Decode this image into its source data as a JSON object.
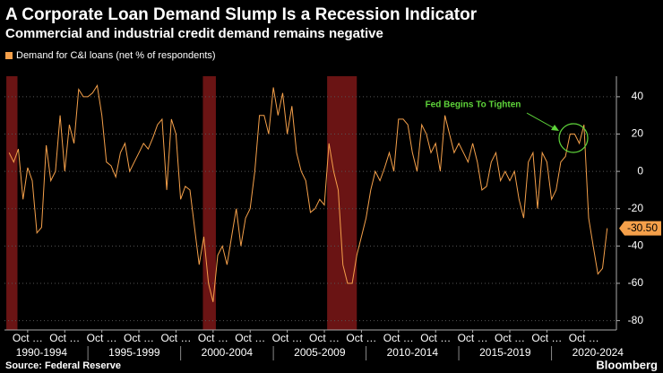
{
  "chart_data": {
    "type": "line",
    "title": "A Corporate Loan Demand Slump Is a Recession Indicator",
    "subtitle": "Commercial and industrial credit demand remains negative",
    "source": "Source: Federal Reserve",
    "brand": "Bloomberg",
    "annotation": "Fed Begins To Tighten",
    "end_label": "-30.50",
    "series": [
      {
        "name": "Demand for C&I loans (net % of respondents)",
        "color": "#f5a04a",
        "x": [
          1990.75,
          1991,
          1991.25,
          1991.5,
          1991.75,
          1992,
          1992.25,
          1992.5,
          1992.75,
          1993,
          1993.25,
          1993.5,
          1993.75,
          1994,
          1994.25,
          1994.5,
          1994.75,
          1995,
          1995.25,
          1995.5,
          1995.75,
          1996,
          1996.25,
          1996.5,
          1996.75,
          1997,
          1997.25,
          1997.5,
          1997.75,
          1998,
          1998.25,
          1998.5,
          1998.75,
          1999,
          1999.25,
          1999.5,
          1999.75,
          2000,
          2000.25,
          2000.5,
          2000.75,
          2001,
          2001.25,
          2001.5,
          2001.75,
          2002,
          2002.25,
          2002.5,
          2002.75,
          2003,
          2003.25,
          2003.5,
          2003.75,
          2004,
          2004.25,
          2004.5,
          2004.75,
          2005,
          2005.25,
          2005.5,
          2005.75,
          2006,
          2006.25,
          2006.5,
          2006.75,
          2007,
          2007.25,
          2007.5,
          2007.75,
          2008,
          2008.25,
          2008.5,
          2008.75,
          2009,
          2009.25,
          2009.5,
          2009.75,
          2010,
          2010.25,
          2010.5,
          2010.75,
          2011,
          2011.25,
          2011.5,
          2011.75,
          2012,
          2012.25,
          2012.5,
          2012.75,
          2013,
          2013.25,
          2013.5,
          2013.75,
          2014,
          2014.25,
          2014.5,
          2014.75,
          2015,
          2015.25,
          2015.5,
          2015.75,
          2016,
          2016.25,
          2016.5,
          2016.75,
          2017,
          2017.25,
          2017.5,
          2017.75,
          2018,
          2018.25,
          2018.5,
          2018.75,
          2019,
          2019.25,
          2019.5,
          2019.75,
          2020,
          2020.25,
          2020.5,
          2020.75,
          2021,
          2021.25,
          2021.5,
          2021.75,
          2022,
          2022.25,
          2022.5,
          2022.75,
          2023
        ],
        "values": [
          10,
          5,
          12,
          -15,
          2,
          -5,
          -33,
          -30,
          14,
          -5,
          0,
          30,
          0,
          25,
          15,
          44,
          40,
          40,
          42,
          46,
          30,
          5,
          3,
          -3,
          10,
          15,
          0,
          5,
          10,
          15,
          12,
          18,
          25,
          28,
          -10,
          28,
          20,
          -15,
          -8,
          -10,
          -30,
          -50,
          -35,
          -60,
          -70,
          -45,
          -40,
          -50,
          -35,
          -20,
          -40,
          -25,
          -20,
          0,
          30,
          30,
          20,
          45,
          30,
          42,
          20,
          35,
          10,
          0,
          -5,
          -22,
          -20,
          -15,
          -18,
          15,
          0,
          -10,
          -50,
          -60,
          -60,
          -45,
          -35,
          -25,
          -10,
          0,
          -5,
          2,
          10,
          0,
          28,
          28,
          25,
          10,
          0,
          25,
          20,
          10,
          15,
          0,
          30,
          20,
          10,
          15,
          10,
          5,
          15,
          5,
          -10,
          -8,
          5,
          10,
          -5,
          0,
          -5,
          0,
          -15,
          -25,
          5,
          10,
          -20,
          10,
          5,
          -15,
          -10,
          5,
          8,
          20,
          20,
          15,
          25,
          -25,
          -40,
          -55,
          -52,
          -30.5
        ]
      }
    ],
    "recessions": [
      [
        1990.6,
        1991.2
      ],
      [
        2001.2,
        2001.9
      ],
      [
        2007.9,
        2009.5
      ]
    ],
    "xlim": [
      1990.5,
      2023.5
    ],
    "xticks": [
      {
        "value": 1991.75,
        "label": "Oct …"
      },
      {
        "value": 1993.75,
        "label": "Oct …"
      },
      {
        "value": 1995.75,
        "label": "Oct …"
      },
      {
        "value": 1997.75,
        "label": "Oct …"
      },
      {
        "value": 1999.75,
        "label": "Oct …"
      },
      {
        "value": 2001.75,
        "label": "Oct …"
      },
      {
        "value": 2003.75,
        "label": "Oct …"
      },
      {
        "value": 2005.75,
        "label": "Oct …"
      },
      {
        "value": 2007.75,
        "label": "Oct …"
      },
      {
        "value": 2009.75,
        "label": "Oct …"
      },
      {
        "value": 2011.75,
        "label": "Oct …"
      },
      {
        "value": 2013.75,
        "label": "Oct …"
      },
      {
        "value": 2015.75,
        "label": "Oct …"
      },
      {
        "value": 2017.75,
        "label": "Oct …"
      },
      {
        "value": 2019.75,
        "label": "Oct …"
      },
      {
        "value": 2021.75,
        "label": "Oct …"
      }
    ],
    "period_labels": [
      {
        "value": 1992.5,
        "label": "1990-1994"
      },
      {
        "value": 1997.5,
        "label": "1995-1999"
      },
      {
        "value": 2002.5,
        "label": "2000-2004"
      },
      {
        "value": 2007.5,
        "label": "2005-2009"
      },
      {
        "value": 2012.5,
        "label": "2010-2014"
      },
      {
        "value": 2017.5,
        "label": "2015-2019"
      },
      {
        "value": 2022.5,
        "label": "2020-2024"
      }
    ],
    "ylim": [
      -85,
      51
    ],
    "yticks": [
      -80,
      -60,
      -40,
      -20,
      0,
      20,
      40
    ],
    "grid": true
  }
}
